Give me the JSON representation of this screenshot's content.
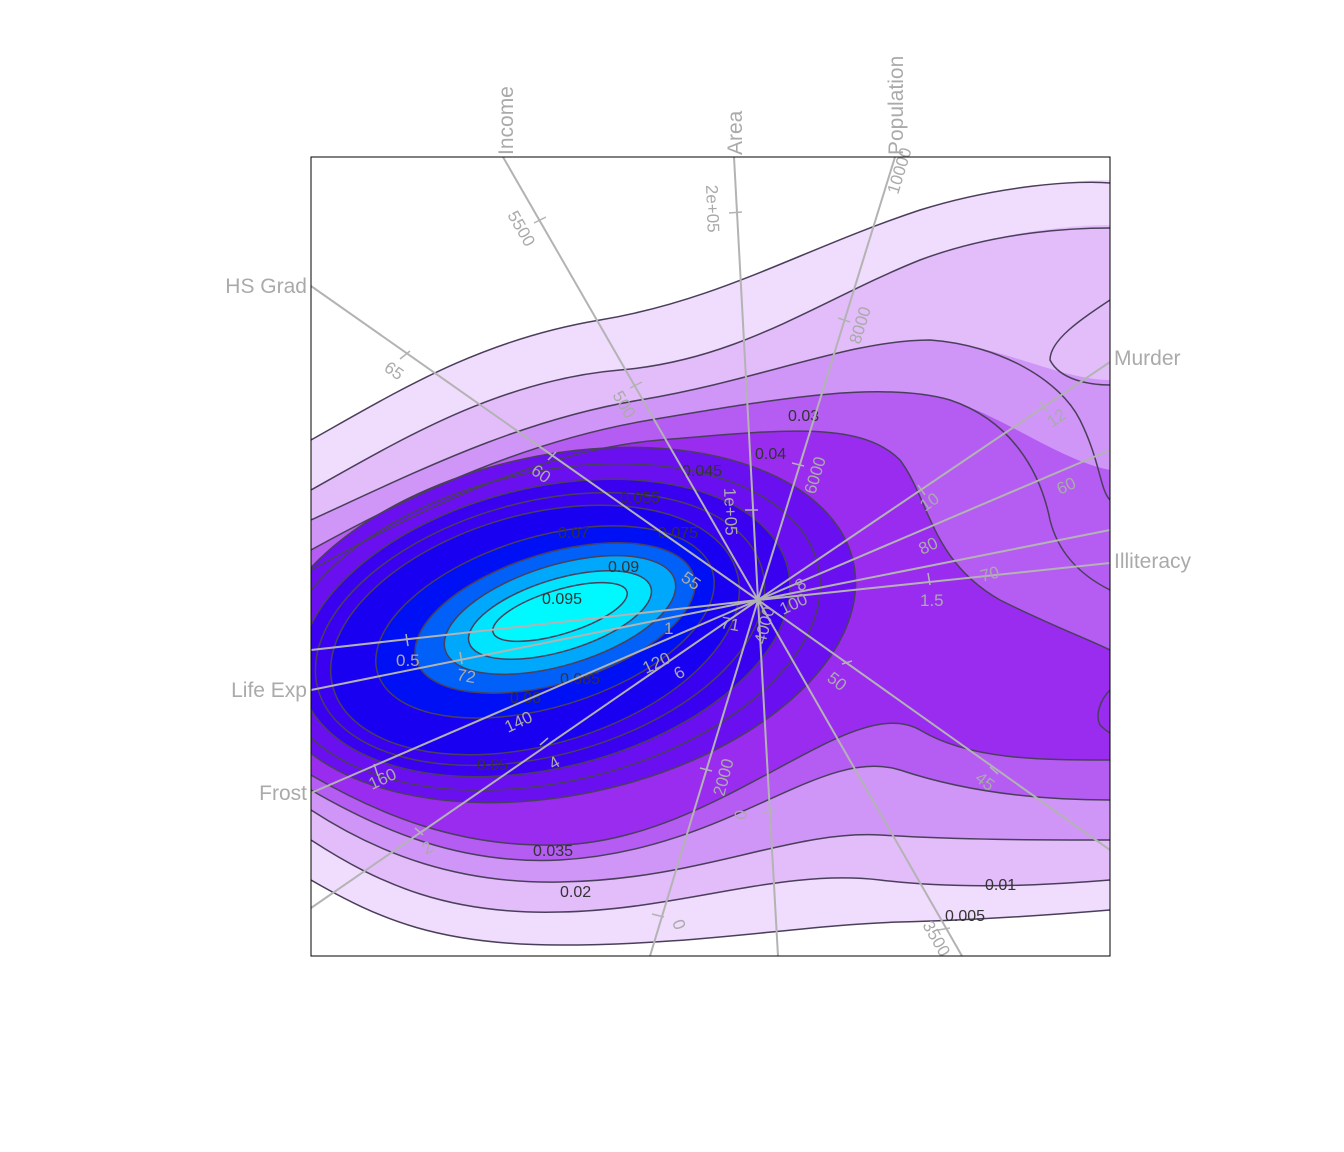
{
  "chart_data": {
    "type": "heatmap",
    "subtype": "biplot-density-contour",
    "title": "",
    "xlabel": "",
    "ylabel": "",
    "grid": false,
    "legend": "none",
    "colors": {
      "density_low": "#f0dcfc",
      "density_mid": "#9a2cf0",
      "density_high_blue": "#1a00f0",
      "density_peak": "#00f0ff",
      "contour_line": "#4a3f5a",
      "axis": "#b3b3b3",
      "axis_label": "#aaaaaa"
    },
    "contour_levels": [
      "0.005",
      "0.01",
      "0.02",
      "0.03",
      "0.035",
      "0.04",
      "0.045",
      "0.05",
      "0.055",
      "0.07",
      "0.075",
      "0.08",
      "0.085",
      "0.09",
      "0.095"
    ],
    "axes": [
      {
        "name": "Income",
        "angle_deg": 118,
        "ticks": [
          "5500",
          "500"
        ]
      },
      {
        "name": "Area",
        "angle_deg": 92,
        "ticks": [
          "2e+05",
          "1e+05"
        ]
      },
      {
        "name": "Population",
        "angle_deg": 73,
        "ticks": [
          "10000",
          "8000",
          "6000"
        ]
      },
      {
        "name": "Murder",
        "angle_deg": 30,
        "ticks": [
          "12",
          "10",
          "8"
        ]
      },
      {
        "name": "HS Grad",
        "angle_deg": 148,
        "ticks": [
          "65",
          "60",
          "55"
        ]
      },
      {
        "name": "Illiteracy",
        "angle_deg": 6,
        "ticks": [
          "1.5",
          "1"
        ]
      },
      {
        "name": "Life Exp",
        "angle_deg": 201,
        "ticks": [
          "72",
          "71"
        ]
      },
      {
        "name": "Frost",
        "angle_deg": 213,
        "ticks": [
          "160",
          "140",
          "120",
          "100"
        ]
      }
    ],
    "extra_ticks": [
      "60",
      "70",
      "80",
      "0.5",
      "6",
      "4",
      "2",
      "2000",
      "0",
      "4000",
      "50",
      "45",
      "3500",
      "0"
    ]
  }
}
